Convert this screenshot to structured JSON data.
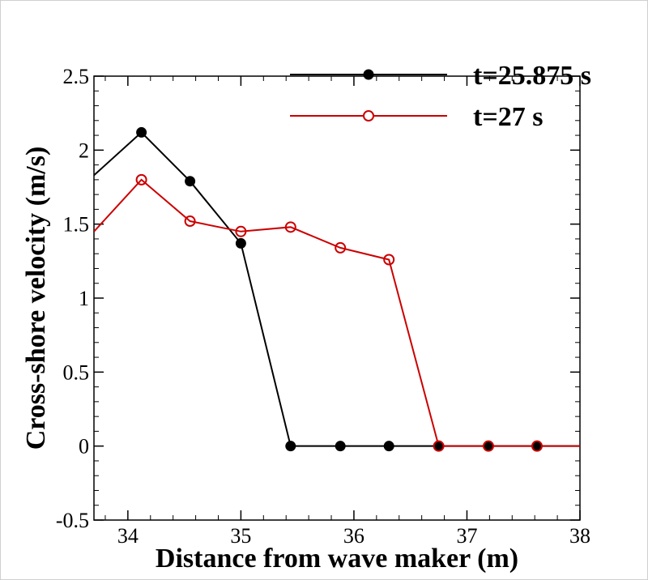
{
  "chart_data": {
    "type": "line",
    "xlabel": "Distance from wave maker (m)",
    "ylabel": "Cross-shore velocity (m/s)",
    "xlim": [
      33.7,
      38.0
    ],
    "ylim": [
      -0.5,
      2.5
    ],
    "xticks": [
      34,
      35,
      36,
      37,
      38
    ],
    "xtick_labels": [
      "34",
      "35",
      "36",
      "37",
      "38"
    ],
    "yticks": [
      -0.5,
      0,
      0.5,
      1,
      1.5,
      2,
      2.5
    ],
    "ytick_labels": [
      "-0.5",
      "0",
      "0.5",
      "1",
      "1.5",
      "2",
      "2.5"
    ],
    "grid": false,
    "legend_position": "top-right",
    "series": [
      {
        "name": "t=25.875 s",
        "color": "#000000",
        "marker": "filled-circle",
        "x": [
          33.7,
          34.12,
          34.55,
          35.0,
          35.44,
          35.88,
          36.31,
          36.75,
          37.19,
          37.62,
          38.0
        ],
        "y": [
          1.83,
          2.12,
          1.79,
          1.37,
          0.0,
          0.0,
          0.0,
          0.0,
          0.0,
          0.0,
          0.0
        ],
        "markers": [
          false,
          true,
          true,
          true,
          true,
          true,
          true,
          true,
          true,
          true,
          false
        ]
      },
      {
        "name": "t=27 s",
        "color": "#cc0000",
        "marker": "open-circle",
        "x": [
          33.7,
          34.12,
          34.55,
          35.0,
          35.44,
          35.88,
          36.31,
          36.75,
          37.19,
          37.62,
          38.0
        ],
        "y": [
          1.45,
          1.8,
          1.52,
          1.45,
          1.48,
          1.34,
          1.26,
          0.0,
          0.0,
          0.0,
          0.0
        ],
        "markers": [
          false,
          true,
          true,
          true,
          true,
          true,
          true,
          true,
          true,
          true,
          false
        ]
      }
    ]
  }
}
